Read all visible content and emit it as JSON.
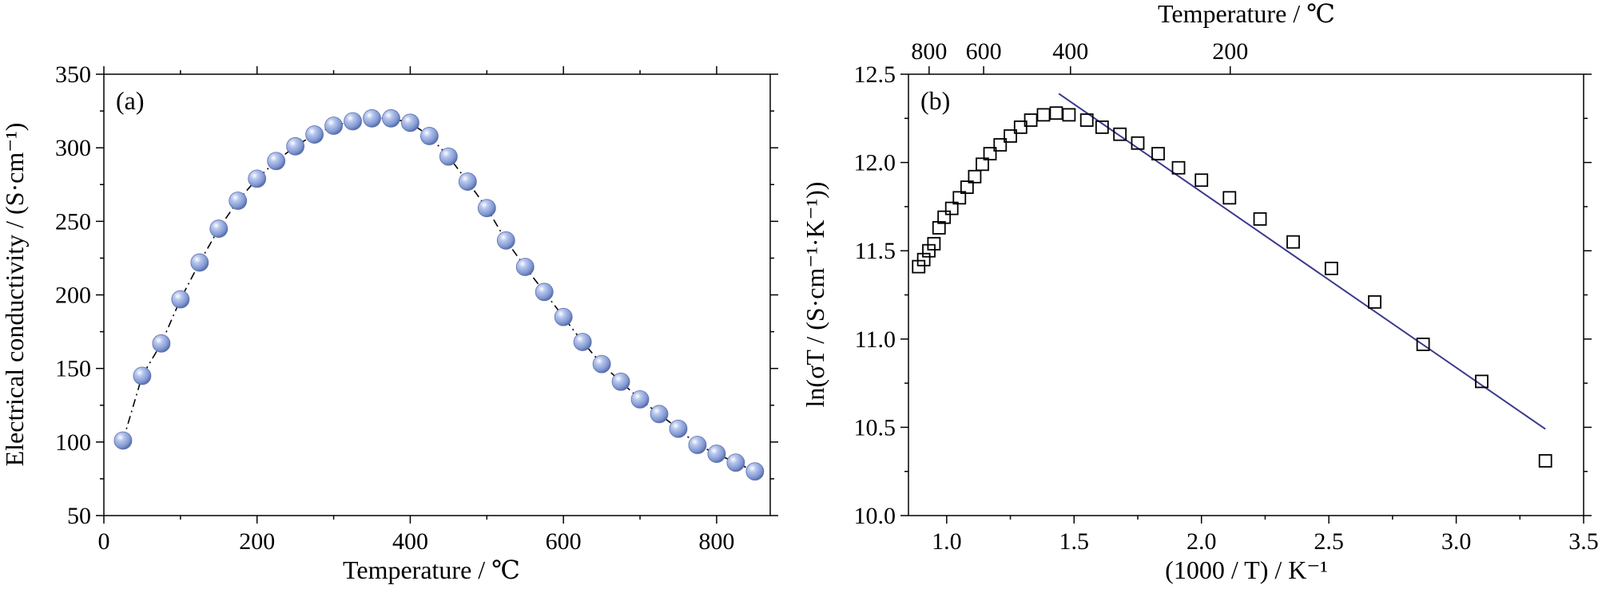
{
  "chart_data": [
    {
      "type": "scatter",
      "panel_label": "(a)",
      "xlabel": "Temperature / ℃",
      "ylabel": "Electrical conductivity / (S·cm⁻¹)",
      "xlim": [
        0,
        870
      ],
      "ylim": [
        50,
        350
      ],
      "xticks": [
        0,
        200,
        400,
        600,
        800
      ],
      "yticks": [
        50,
        100,
        150,
        200,
        250,
        300,
        350
      ],
      "marker_color": "#7f97d0",
      "line_style": "dash-dot connecting line",
      "grid": false,
      "series": [
        {
          "x": [
            25,
            50,
            75,
            100,
            125,
            150,
            175,
            200,
            225,
            250,
            275,
            300,
            325,
            350,
            375,
            400,
            425,
            450,
            475,
            500,
            525,
            550,
            575,
            600,
            625,
            650,
            675,
            700,
            725,
            750,
            775,
            800,
            825,
            850
          ],
          "y": [
            101,
            145,
            167,
            197,
            222,
            245,
            264,
            279,
            291,
            301,
            309,
            315,
            318,
            320,
            320,
            317,
            308,
            294,
            277,
            259,
            237,
            219,
            202,
            185,
            168,
            153,
            141,
            129,
            119,
            109,
            98,
            92,
            86,
            80
          ]
        }
      ]
    },
    {
      "type": "scatter",
      "panel_label": "(b)",
      "xlabel": "(1000 / T) / K⁻¹",
      "ylabel": "ln(σT / (S·cm⁻¹·K⁻¹))",
      "top_xlabel": "Temperature / ℃",
      "xlim": [
        0.85,
        3.5
      ],
      "ylim": [
        10.0,
        12.5
      ],
      "xticks": [
        1.0,
        1.5,
        2.0,
        2.5,
        3.0,
        3.5
      ],
      "yticks": [
        10.0,
        10.5,
        11.0,
        11.5,
        12.0,
        12.5
      ],
      "top_ticks": [
        {
          "label": "800",
          "value": 0.931
        },
        {
          "label": "600",
          "value": 1.145
        },
        {
          "label": "400",
          "value": 1.486
        },
        {
          "label": "200",
          "value": 2.113
        }
      ],
      "marker": "open-square",
      "fit_line_color": "#3a3a8c",
      "fit_line": {
        "x": [
          1.44,
          3.35
        ],
        "y": [
          12.39,
          10.49
        ]
      },
      "grid": false,
      "series": [
        {
          "x": [
            0.89,
            0.91,
            0.93,
            0.95,
            0.97,
            0.99,
            1.02,
            1.05,
            1.08,
            1.11,
            1.14,
            1.17,
            1.21,
            1.25,
            1.29,
            1.33,
            1.38,
            1.43,
            1.48,
            1.55,
            1.61,
            1.68,
            1.75,
            1.83,
            1.91,
            2.0,
            2.11,
            2.23,
            2.36,
            2.51,
            2.68,
            2.87,
            3.1,
            3.35
          ],
          "y": [
            11.41,
            11.45,
            11.5,
            11.54,
            11.63,
            11.69,
            11.74,
            11.8,
            11.86,
            11.92,
            11.99,
            12.05,
            12.1,
            12.15,
            12.2,
            12.24,
            12.27,
            12.28,
            12.27,
            12.24,
            12.2,
            12.16,
            12.11,
            12.05,
            11.97,
            11.9,
            11.8,
            11.68,
            11.55,
            11.4,
            11.21,
            10.97,
            10.76,
            10.31
          ]
        }
      ]
    }
  ]
}
